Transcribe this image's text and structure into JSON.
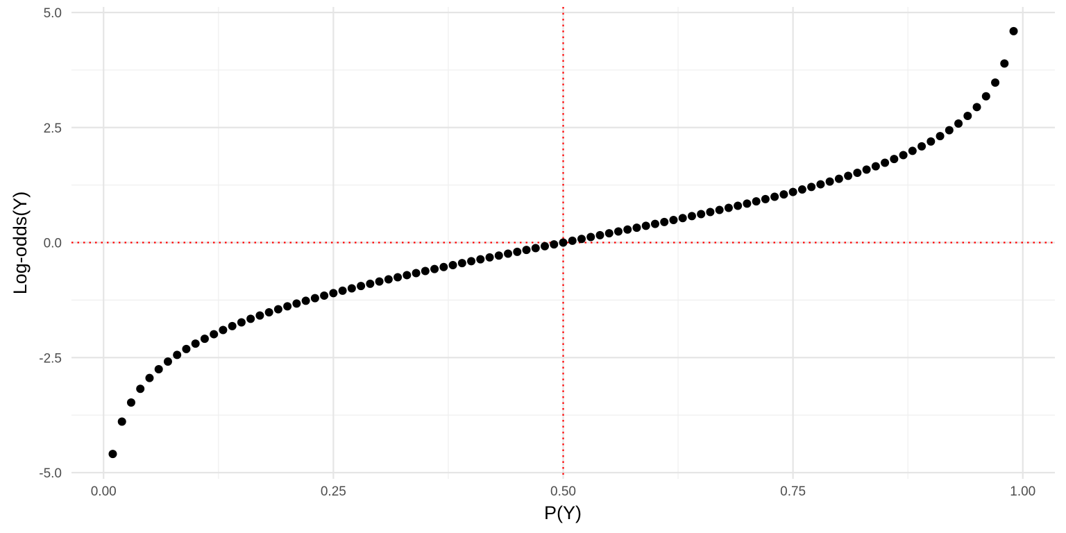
{
  "chart_data": {
    "type": "scatter",
    "title": "",
    "xlabel": "P(Y)",
    "ylabel": "Log-odds(Y)",
    "xlim": [
      -0.0349,
      1.0349
    ],
    "ylim": [
      -5.0,
      5.0
    ],
    "x_ticks": [
      0.0,
      0.25,
      0.5,
      0.75,
      1.0
    ],
    "x_tick_labels": [
      "0.00",
      "0.25",
      "0.50",
      "0.75",
      "1.00"
    ],
    "y_ticks": [
      -5.0,
      -2.5,
      0.0,
      2.5,
      5.0
    ],
    "y_tick_labels": [
      "-5.0",
      "-2.5",
      "0.0",
      "2.5",
      "5.0"
    ],
    "x_minor_ticks": [
      0.125,
      0.375,
      0.625,
      0.875
    ],
    "y_minor_ticks": [
      -3.75,
      -1.25,
      1.25,
      3.75
    ],
    "grid": true,
    "legend": "none",
    "reference_lines": [
      {
        "orientation": "vertical",
        "value": 0.5,
        "style": "dotted",
        "color": "#ff0000"
      },
      {
        "orientation": "horizontal",
        "value": 0.0,
        "style": "dotted",
        "color": "#ff0000"
      }
    ],
    "point_color": "#000000",
    "series": [
      {
        "x": [
          0.01,
          0.02,
          0.03,
          0.04,
          0.05,
          0.06,
          0.07,
          0.08,
          0.09,
          0.1,
          0.11,
          0.12,
          0.13,
          0.14,
          0.15,
          0.16,
          0.17,
          0.18,
          0.19,
          0.2,
          0.21,
          0.22,
          0.23,
          0.24,
          0.25,
          0.26,
          0.27,
          0.28,
          0.29,
          0.3,
          0.31,
          0.32,
          0.33,
          0.34,
          0.35,
          0.36,
          0.37,
          0.38,
          0.39,
          0.4,
          0.41,
          0.42,
          0.43,
          0.44,
          0.45,
          0.46,
          0.47,
          0.48,
          0.49,
          0.5,
          0.51,
          0.52,
          0.53,
          0.54,
          0.55,
          0.56,
          0.57,
          0.58,
          0.59,
          0.6,
          0.61,
          0.62,
          0.63,
          0.64,
          0.65,
          0.66,
          0.67,
          0.68,
          0.69,
          0.7,
          0.71,
          0.72,
          0.73,
          0.74,
          0.75,
          0.76,
          0.77,
          0.78,
          0.79,
          0.8,
          0.81,
          0.82,
          0.83,
          0.84,
          0.85,
          0.86,
          0.87,
          0.88,
          0.89,
          0.9,
          0.91,
          0.92,
          0.93,
          0.94,
          0.95,
          0.96,
          0.97,
          0.98,
          0.99
        ],
        "y": [
          -4.595,
          -3.892,
          -3.476,
          -3.178,
          -2.944,
          -2.752,
          -2.587,
          -2.442,
          -2.314,
          -2.197,
          -2.091,
          -1.992,
          -1.901,
          -1.815,
          -1.735,
          -1.658,
          -1.586,
          -1.516,
          -1.45,
          -1.386,
          -1.325,
          -1.266,
          -1.208,
          -1.153,
          -1.099,
          -1.046,
          -0.995,
          -0.944,
          -0.895,
          -0.847,
          -0.8,
          -0.754,
          -0.708,
          -0.663,
          -0.619,
          -0.575,
          -0.532,
          -0.49,
          -0.447,
          -0.405,
          -0.364,
          -0.323,
          -0.282,
          -0.241,
          -0.201,
          -0.16,
          -0.12,
          -0.08,
          -0.04,
          0.0,
          0.04,
          0.08,
          0.12,
          0.16,
          0.201,
          0.241,
          0.282,
          0.323,
          0.364,
          0.405,
          0.447,
          0.49,
          0.532,
          0.575,
          0.619,
          0.663,
          0.708,
          0.754,
          0.8,
          0.847,
          0.895,
          0.944,
          0.995,
          1.046,
          1.099,
          1.153,
          1.208,
          1.266,
          1.325,
          1.386,
          1.45,
          1.516,
          1.586,
          1.658,
          1.735,
          1.815,
          1.901,
          1.992,
          2.091,
          2.197,
          2.314,
          2.442,
          2.587,
          2.752,
          2.944,
          3.178,
          3.476,
          3.892,
          4.595
        ]
      }
    ]
  }
}
